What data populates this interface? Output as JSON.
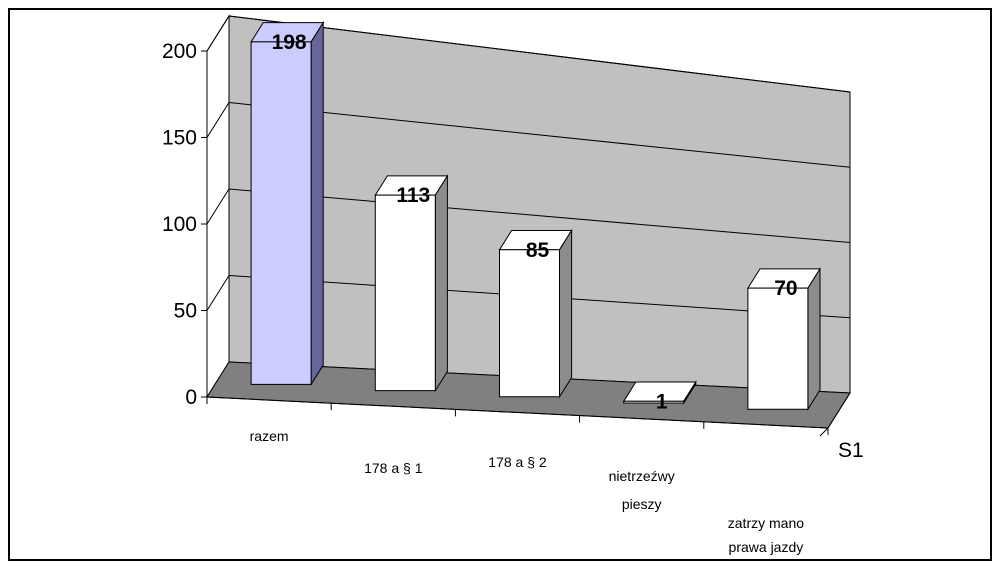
{
  "chart_data": {
    "type": "bar",
    "title": "",
    "xlabel": "",
    "ylabel": "",
    "categories": [
      [
        "razem"
      ],
      [
        "178 a § 1"
      ],
      [
        "178 a § 2"
      ],
      [
        "nietrzeźwy",
        "pieszy"
      ],
      [
        "zatrzy mano",
        "prawa jazdy"
      ]
    ],
    "series": [
      {
        "name": "S1",
        "values": [
          198,
          113,
          85,
          1,
          70
        ]
      }
    ],
    "ylim": [
      0,
      200
    ],
    "yticks": [
      "0",
      "50",
      "100",
      "150",
      "200"
    ],
    "data_labels": [
      "198",
      "113",
      "85",
      "1",
      "70"
    ],
    "grid": true,
    "style": "3d-column",
    "colors": {
      "highlight_bar": "#ccccff",
      "highlight_bar_side": "#666699",
      "bar": "#ffffff",
      "bar_side": "#8c8c8c",
      "back_wall": "#c0c0c0",
      "floor": "#808080"
    }
  }
}
